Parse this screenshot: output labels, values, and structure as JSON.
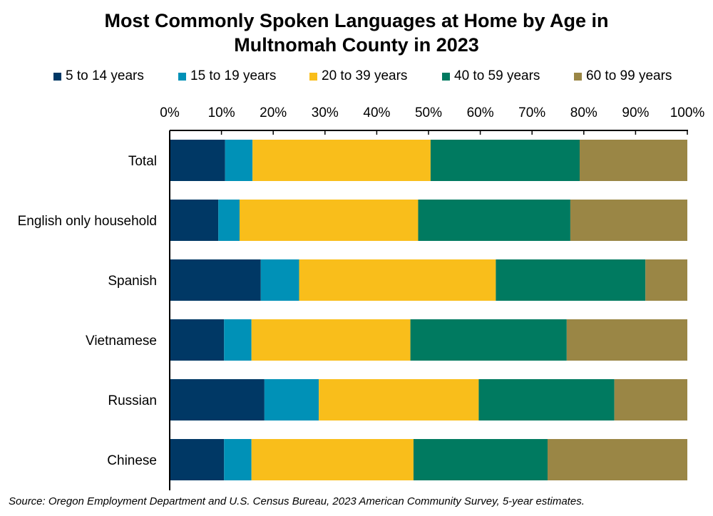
{
  "chart_data": {
    "type": "bar",
    "orientation": "horizontal",
    "stacked": true,
    "title_lines": [
      "Most Commonly Spoken Languages at Home by Age in",
      "Multnomah County in 2023"
    ],
    "categories": [
      "Total",
      "English only household",
      "Spanish",
      "Vietnamese",
      "Russian",
      "Chinese"
    ],
    "series": [
      {
        "name": "5 to 14 years",
        "color": "#003865",
        "values": [
          10.7,
          9.4,
          17.6,
          10.5,
          18.3,
          10.5
        ]
      },
      {
        "name": "15 to 19 years",
        "color": "#0091b7",
        "values": [
          5.3,
          4.1,
          7.4,
          5.3,
          10.5,
          5.3
        ]
      },
      {
        "name": "20 to 39 years",
        "color": "#f9be1b",
        "values": [
          34.4,
          34.5,
          38.0,
          30.7,
          30.9,
          31.3
        ]
      },
      {
        "name": "40 to 59 years",
        "color": "#007a60",
        "values": [
          28.8,
          29.4,
          28.9,
          30.2,
          26.2,
          25.9
        ]
      },
      {
        "name": "60 to 99 years",
        "color": "#9a8645",
        "values": [
          20.8,
          22.6,
          8.1,
          23.3,
          14.1,
          27.0
        ]
      }
    ],
    "x_ticks": [
      "0%",
      "10%",
      "20%",
      "30%",
      "40%",
      "50%",
      "60%",
      "70%",
      "80%",
      "90%",
      "100%"
    ],
    "xlim": [
      0,
      100
    ],
    "x_axis_position": "top",
    "legend_position": "top",
    "grid": false,
    "source": "Source: Oregon Employment Department and U.S. Census Bureau, 2023 American Community Survey, 5-year estimates."
  }
}
